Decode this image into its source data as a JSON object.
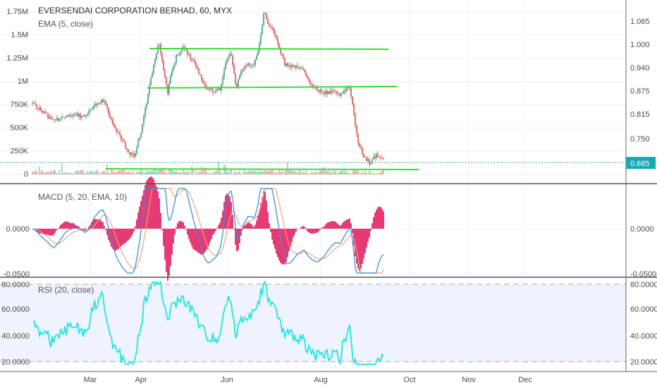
{
  "header": {
    "title": "EVERSENDAI CORPORATION BERHAD, 60, MYX",
    "overlay": "EMA (5, close)"
  },
  "price_badge": "0.685",
  "x_ticks": [
    "Mar",
    "Apr",
    "Jun",
    "Aug",
    "Oct",
    "Nov",
    "Dec"
  ],
  "colors": {
    "up": "#53a38b",
    "down": "#e0605a",
    "support": "#33e033",
    "macd": "#3c8fd8",
    "signal": "#f0a37a",
    "hist": "#e0185a",
    "rsi": "#1ee6e6",
    "badge": "#19a8b0"
  },
  "chart_data": [
    {
      "type": "candlestick",
      "title": "EVERSENDAI CORPORATION BERHAD, 60, MYX",
      "overlay": "EMA (5, close)",
      "x_ticks": [
        "Mar",
        "Apr",
        "Jun",
        "Aug",
        "Oct",
        "Nov",
        "Dec"
      ],
      "price_axis_ticks": [
        "1.065",
        "1.000",
        "0.940",
        "0.875",
        "0.815",
        "0.750",
        "0.685"
      ],
      "volume_axis_ticks": [
        "1.75M",
        "1.5M",
        "1.25M",
        "1M",
        "750K",
        "500K",
        "250K",
        "0"
      ],
      "price_range": [
        0.63,
        1.11
      ],
      "last_price": 0.685,
      "price_path": [
        [
          0.0,
          0.84
        ],
        [
          0.03,
          0.815
        ],
        [
          0.06,
          0.79
        ],
        [
          0.09,
          0.805
        ],
        [
          0.12,
          0.81
        ],
        [
          0.15,
          0.8
        ],
        [
          0.18,
          0.835
        ],
        [
          0.2,
          0.85
        ],
        [
          0.215,
          0.82
        ],
        [
          0.23,
          0.78
        ],
        [
          0.25,
          0.745
        ],
        [
          0.275,
          0.7
        ],
        [
          0.29,
          0.69
        ],
        [
          0.31,
          0.76
        ],
        [
          0.33,
          0.87
        ],
        [
          0.345,
          0.95
        ],
        [
          0.36,
          1.01
        ],
        [
          0.375,
          0.93
        ],
        [
          0.385,
          0.87
        ],
        [
          0.395,
          0.92
        ],
        [
          0.41,
          0.975
        ],
        [
          0.43,
          1.0
        ],
        [
          0.45,
          0.97
        ],
        [
          0.465,
          0.95
        ],
        [
          0.48,
          0.91
        ],
        [
          0.5,
          0.88
        ],
        [
          0.52,
          0.875
        ],
        [
          0.535,
          0.88
        ],
        [
          0.55,
          0.96
        ],
        [
          0.565,
          0.985
        ],
        [
          0.58,
          0.88
        ],
        [
          0.595,
          0.935
        ],
        [
          0.615,
          0.95
        ],
        [
          0.63,
          0.945
        ],
        [
          0.645,
          1.0
        ],
        [
          0.66,
          1.1
        ],
        [
          0.675,
          1.06
        ],
        [
          0.69,
          1.04
        ],
        [
          0.705,
          0.99
        ],
        [
          0.72,
          0.95
        ],
        [
          0.745,
          0.945
        ],
        [
          0.77,
          0.935
        ],
        [
          0.79,
          0.9
        ],
        [
          0.81,
          0.88
        ],
        [
          0.83,
          0.87
        ],
        [
          0.855,
          0.875
        ],
        [
          0.875,
          0.86
        ],
        [
          0.89,
          0.875
        ],
        [
          0.905,
          0.885
        ],
        [
          0.915,
          0.81
        ],
        [
          0.93,
          0.72
        ],
        [
          0.945,
          0.69
        ],
        [
          0.96,
          0.67
        ],
        [
          0.975,
          0.69
        ],
        [
          0.99,
          0.69
        ],
        [
          1.0,
          0.685
        ]
      ]
    },
    {
      "type": "line",
      "title": "MACD (5, 20, EMA, 10)",
      "axis_ticks": [
        "0.0000",
        "-0.0500"
      ],
      "series": [
        "macd",
        "signal",
        "histogram"
      ]
    },
    {
      "type": "line",
      "title": "RSI (20, close)",
      "axis_ticks": [
        "80.0000",
        "60.0000",
        "40.0000",
        "20.0000"
      ],
      "bands": [
        80,
        20
      ]
    }
  ]
}
